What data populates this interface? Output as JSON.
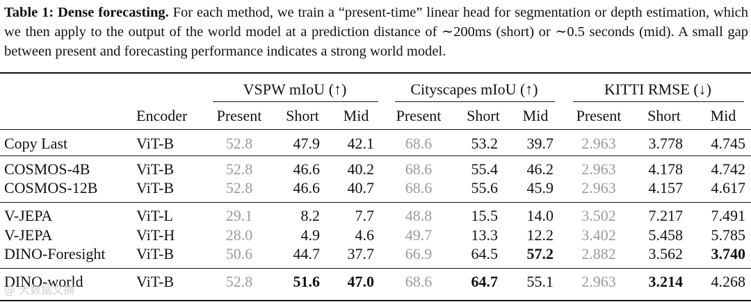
{
  "caption": {
    "label": "Table 1: Dense forecasting.",
    "text": " For each method, we train a “present-time” linear head for segmentation or depth estimation, which we then apply to the output of the world model at a prediction distance of ∼200ms (short) or ∼0.5 seconds (mid). A small gap between present and forecasting performance indicates a strong world model."
  },
  "table": {
    "groups": [
      "VSPW mIoU (↑)",
      "Cityscapes mIoU (↑)",
      "KITTI RMSE (↓)"
    ],
    "encoder_header": "Encoder",
    "subheaders": [
      "Present",
      "Short",
      "Mid",
      "Present",
      "Short",
      "Mid",
      "Present",
      "Short",
      "Mid"
    ],
    "rows": [
      {
        "method": "Copy Last",
        "encoder": "ViT-B",
        "values": [
          "52.8",
          "47.9",
          "42.1",
          "68.6",
          "53.2",
          "39.7",
          "2.963",
          "3.778",
          "4.745"
        ]
      },
      {
        "method": "COSMOS-4B",
        "encoder": "ViT-B",
        "values": [
          "52.8",
          "46.6",
          "40.2",
          "68.6",
          "55.4",
          "46.2",
          "2.963",
          "4.178",
          "4.742"
        ]
      },
      {
        "method": "COSMOS-12B",
        "encoder": "ViT-B",
        "values": [
          "52.8",
          "46.6",
          "40.7",
          "68.6",
          "55.6",
          "45.9",
          "2.963",
          "4.157",
          "4.617"
        ]
      },
      {
        "method": "V-JEPA",
        "encoder": "ViT-L",
        "values": [
          "29.1",
          "8.2",
          "7.7",
          "48.8",
          "15.5",
          "14.0",
          "3.502",
          "7.217",
          "7.491"
        ]
      },
      {
        "method": "V-JEPA",
        "encoder": "ViT-H",
        "values": [
          "28.0",
          "4.9",
          "4.6",
          "49.7",
          "13.3",
          "12.2",
          "3.402",
          "5.458",
          "5.785"
        ]
      },
      {
        "method": "DINO-Foresight",
        "encoder": "ViT-B",
        "values": [
          "50.6",
          "44.7",
          "37.7",
          "66.9",
          "64.5",
          "57.2",
          "2.882",
          "3.562",
          "3.740"
        ]
      },
      {
        "method": "DINO-world",
        "encoder": "ViT-B",
        "values": [
          "52.8",
          "51.6",
          "47.0",
          "68.6",
          "64.7",
          "55.1",
          "2.963",
          "3.214",
          "4.268"
        ]
      }
    ],
    "bold_cells": [
      [
        5,
        5
      ],
      [
        5,
        8
      ],
      [
        6,
        1
      ],
      [
        6,
        2
      ],
      [
        6,
        4
      ],
      [
        6,
        7
      ]
    ]
  },
  "watermark": "@ 大数据文摘"
}
